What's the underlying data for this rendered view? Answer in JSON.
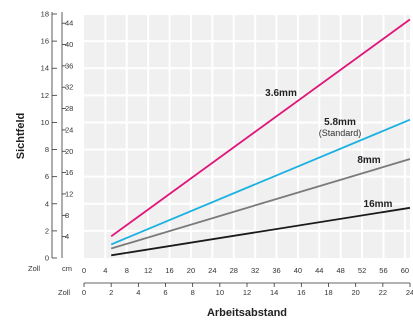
{
  "chart_data": {
    "type": "line",
    "xlabel": "Arbeitsabstand",
    "ylabel": "Sichtfeld",
    "grid": true,
    "x_cm_unit": "cm",
    "x_cm_ticks": [
      0,
      4,
      8,
      12,
      16,
      20,
      24,
      28,
      32,
      36,
      40,
      44,
      48,
      52,
      56,
      60
    ],
    "x_inch_unit": "Zoll",
    "x_inch_ticks": [
      0,
      2,
      4,
      6,
      8,
      10,
      12,
      14,
      16,
      18,
      20,
      22,
      24
    ],
    "y_inch_unit": "Zoll",
    "y_inch_ticks": [
      0,
      2,
      4,
      6,
      8,
      10,
      12,
      14,
      16,
      18
    ],
    "y_cm_unit": "cm",
    "y_cm_ticks": [
      4,
      8,
      12,
      16,
      20,
      24,
      28,
      32,
      36,
      40,
      44
    ],
    "xlim": [
      0,
      24
    ],
    "ylim": [
      0,
      18
    ],
    "series": [
      {
        "name": "3.6mm",
        "sub": "",
        "color": "#e0157a",
        "x": [
          2,
          24
        ],
        "y": [
          1.6,
          17.6
        ]
      },
      {
        "name": "5.8mm",
        "sub": "(Standard)",
        "color": "#1ab0e0",
        "x": [
          2,
          24
        ],
        "y": [
          1.0,
          10.2
        ]
      },
      {
        "name": "8mm",
        "sub": "",
        "color": "#7a7a7a",
        "x": [
          2,
          24
        ],
        "y": [
          0.7,
          7.3
        ]
      },
      {
        "name": "16mm",
        "sub": "",
        "color": "#1a1a1a",
        "x": [
          2,
          24
        ],
        "y": [
          0.2,
          3.7
        ]
      }
    ]
  }
}
